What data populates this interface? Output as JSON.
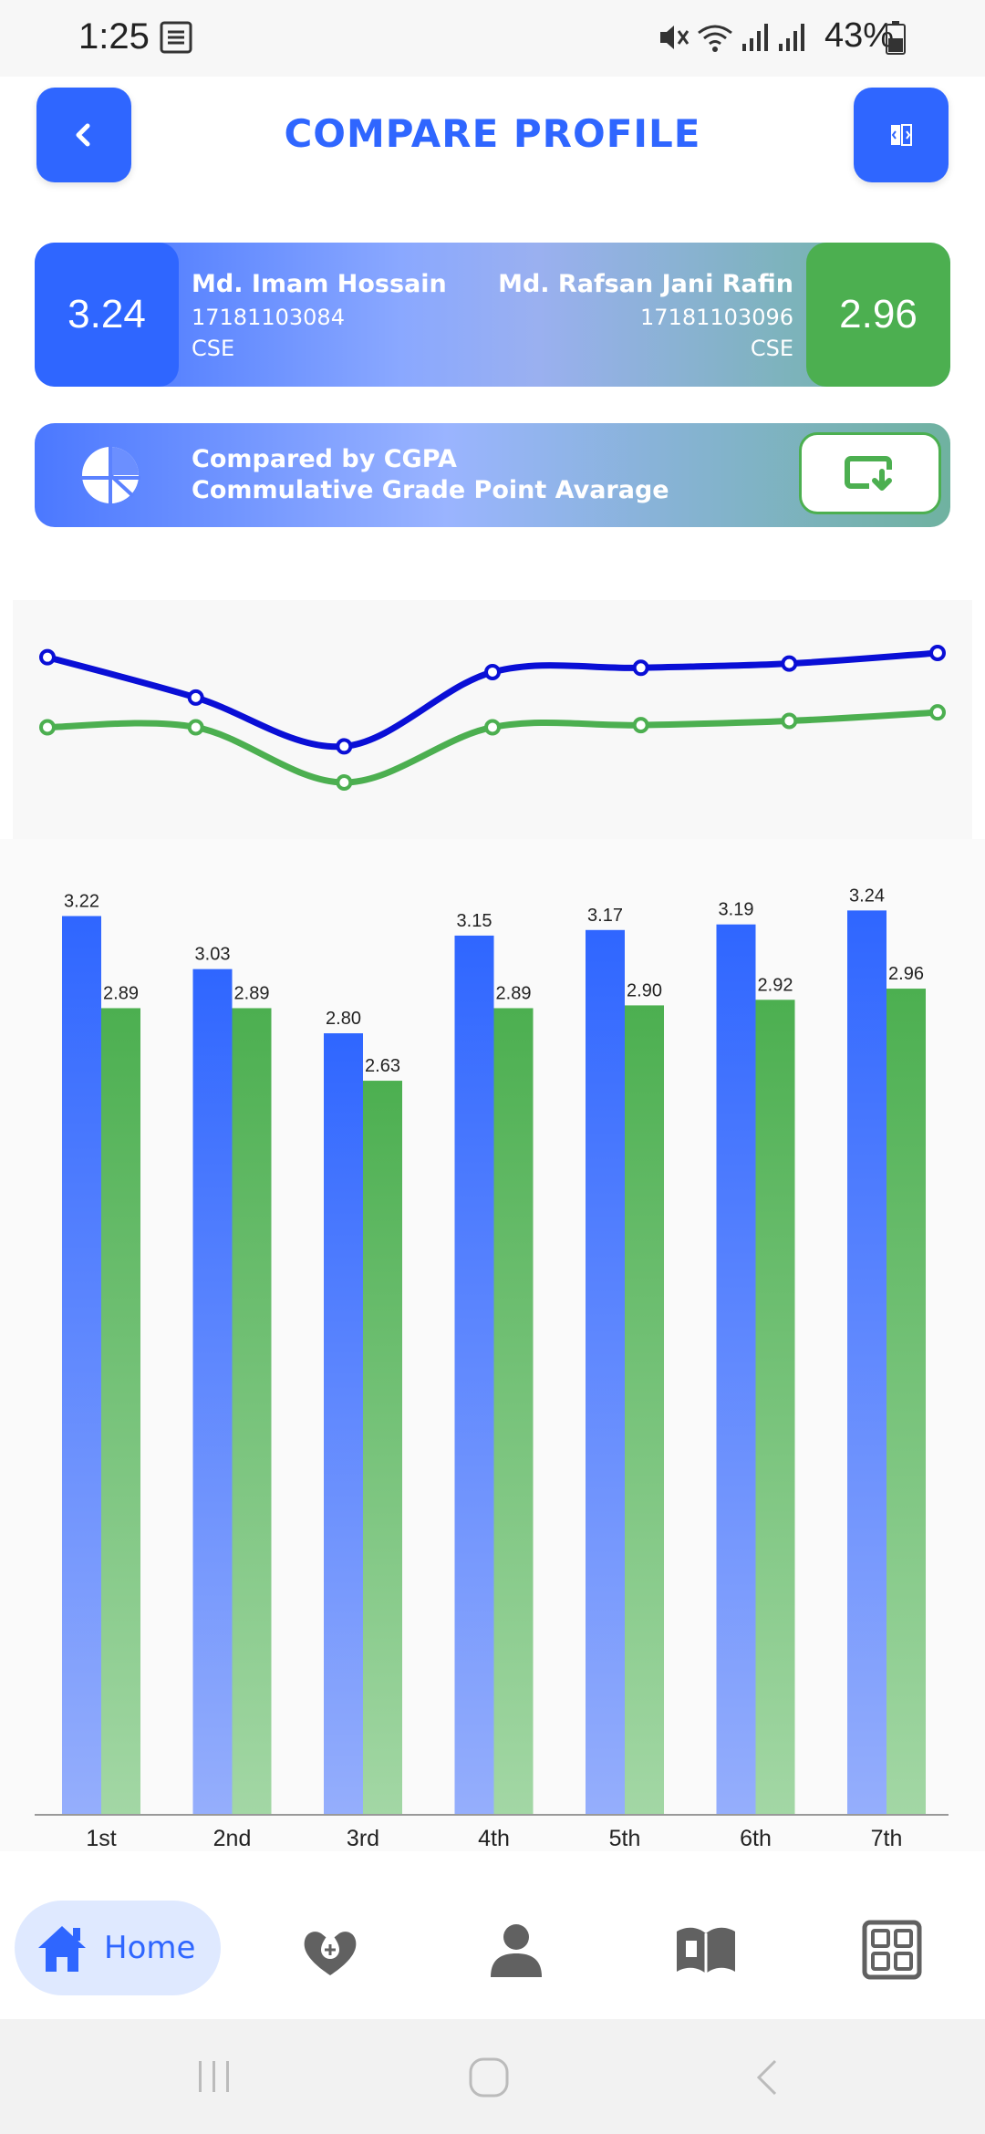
{
  "status_bar": {
    "time": "1:25",
    "battery": "43%"
  },
  "header": {
    "title": "COMPARE PROFILE"
  },
  "profile_left": {
    "cgpa": "3.24",
    "name": "Md. Imam Hossain",
    "id": "17181103084",
    "dept": "CSE"
  },
  "profile_right": {
    "cgpa": "2.96",
    "name": "Md. Rafsan Jani Rafin",
    "id": "17181103096",
    "dept": "CSE"
  },
  "compare": {
    "title": "Compared by CGPA",
    "subtitle": "Commulative Grade Point Avarage"
  },
  "colors": {
    "primary": "#2f66ff",
    "secondary": "#4caf50",
    "line_primary": "#0a0fd6"
  },
  "chart_data": [
    {
      "type": "line",
      "x": [
        "1st",
        "2nd",
        "3rd",
        "4th",
        "5th",
        "6th",
        "7th"
      ],
      "series": [
        {
          "values": [
            3.22,
            3.03,
            2.8,
            3.15,
            3.17,
            3.19,
            3.24
          ]
        },
        {
          "values": [
            2.89,
            2.89,
            2.63,
            2.89,
            2.9,
            2.92,
            2.96
          ]
        }
      ]
    },
    {
      "type": "bar",
      "categories": [
        "1st",
        "2nd",
        "3rd",
        "4th",
        "5th",
        "6th",
        "7th"
      ],
      "series": [
        {
          "values": [
            3.22,
            3.03,
            2.8,
            3.15,
            3.17,
            3.19,
            3.24
          ],
          "labels": [
            "3.22",
            "3.03",
            "2.80",
            "3.15",
            "3.17",
            "3.19",
            "3.24"
          ]
        },
        {
          "values": [
            2.89,
            2.89,
            2.63,
            2.89,
            2.9,
            2.92,
            2.96
          ],
          "labels": [
            "2.89",
            "2.89",
            "2.63",
            "2.89",
            "2.90",
            "2.92",
            "2.96"
          ]
        }
      ],
      "ylim": [
        0,
        3.3
      ]
    }
  ],
  "nav": {
    "home_label": "Home"
  }
}
